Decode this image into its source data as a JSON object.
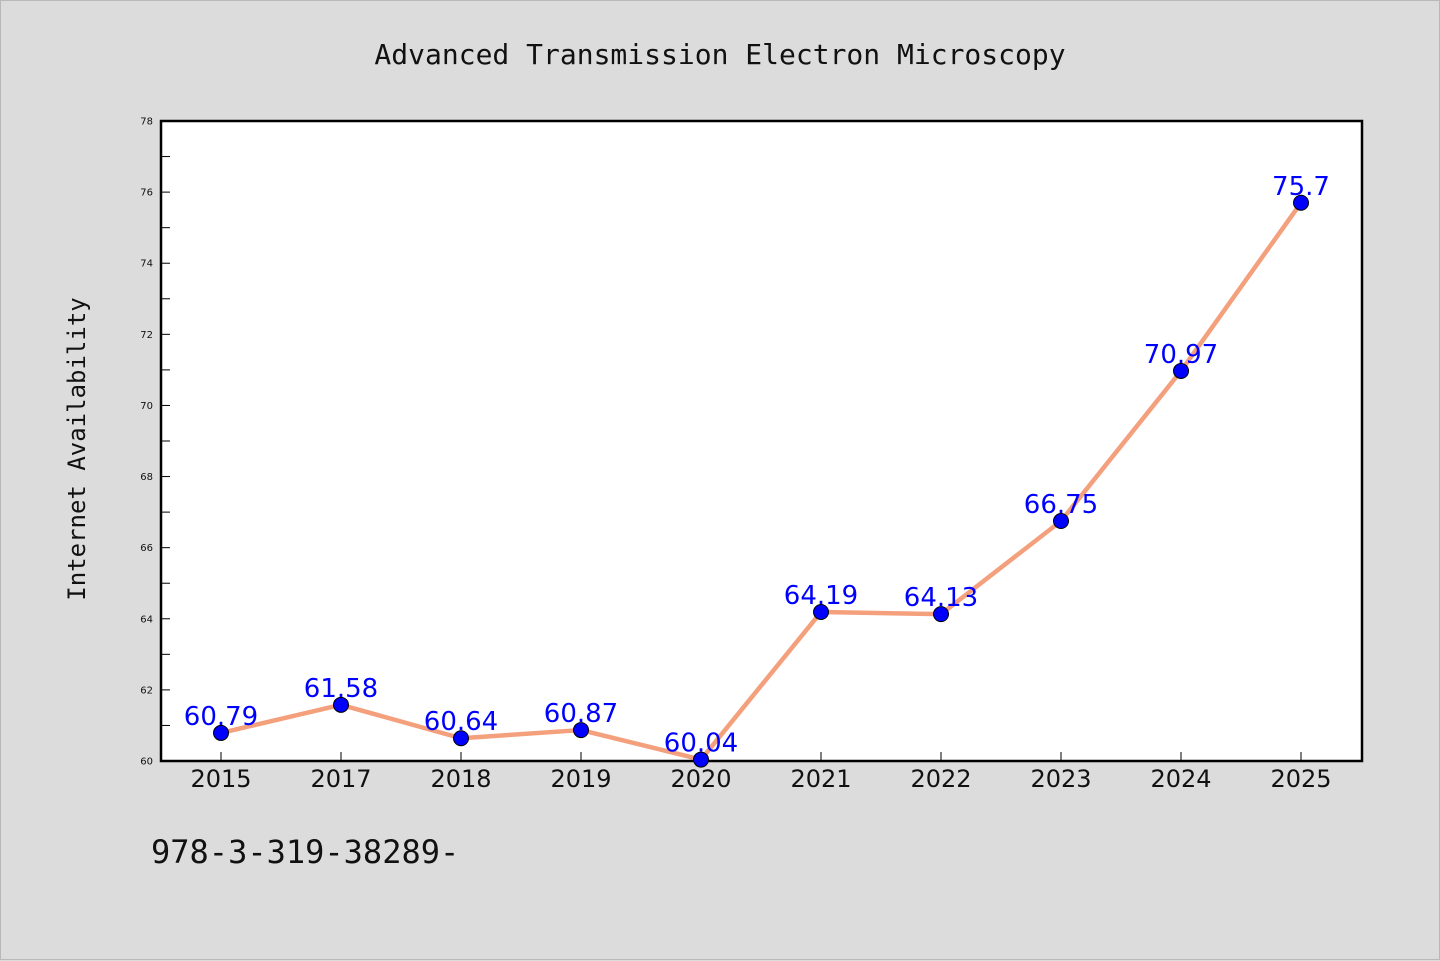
{
  "chart_data": {
    "type": "line",
    "title": "Advanced Transmission Electron Microscopy",
    "xlabel": "",
    "ylabel": "Internet Availability",
    "categories": [
      "2015",
      "2017",
      "2018",
      "2019",
      "2020",
      "2021",
      "2022",
      "2023",
      "2024",
      "2025"
    ],
    "series": [
      {
        "values": [
          60.79,
          61.58,
          60.64,
          60.87,
          60.04,
          64.19,
          64.13,
          66.75,
          70.97,
          75.7
        ],
        "labels": [
          "60.79",
          "61.58",
          "60.64",
          "60.87",
          "60.04",
          "64.19",
          "64.13",
          "66.75",
          "70.97",
          "75.7"
        ],
        "line_color": "#f4a07c",
        "marker_color": "#0000ff"
      }
    ],
    "ylim": [
      60,
      78
    ],
    "yticks": [
      "60",
      "62",
      "64",
      "66",
      "68",
      "70",
      "72",
      "74",
      "76",
      "78"
    ],
    "grid": false,
    "legend": "none"
  },
  "footer": {
    "text": "978-3-319-38289-"
  }
}
